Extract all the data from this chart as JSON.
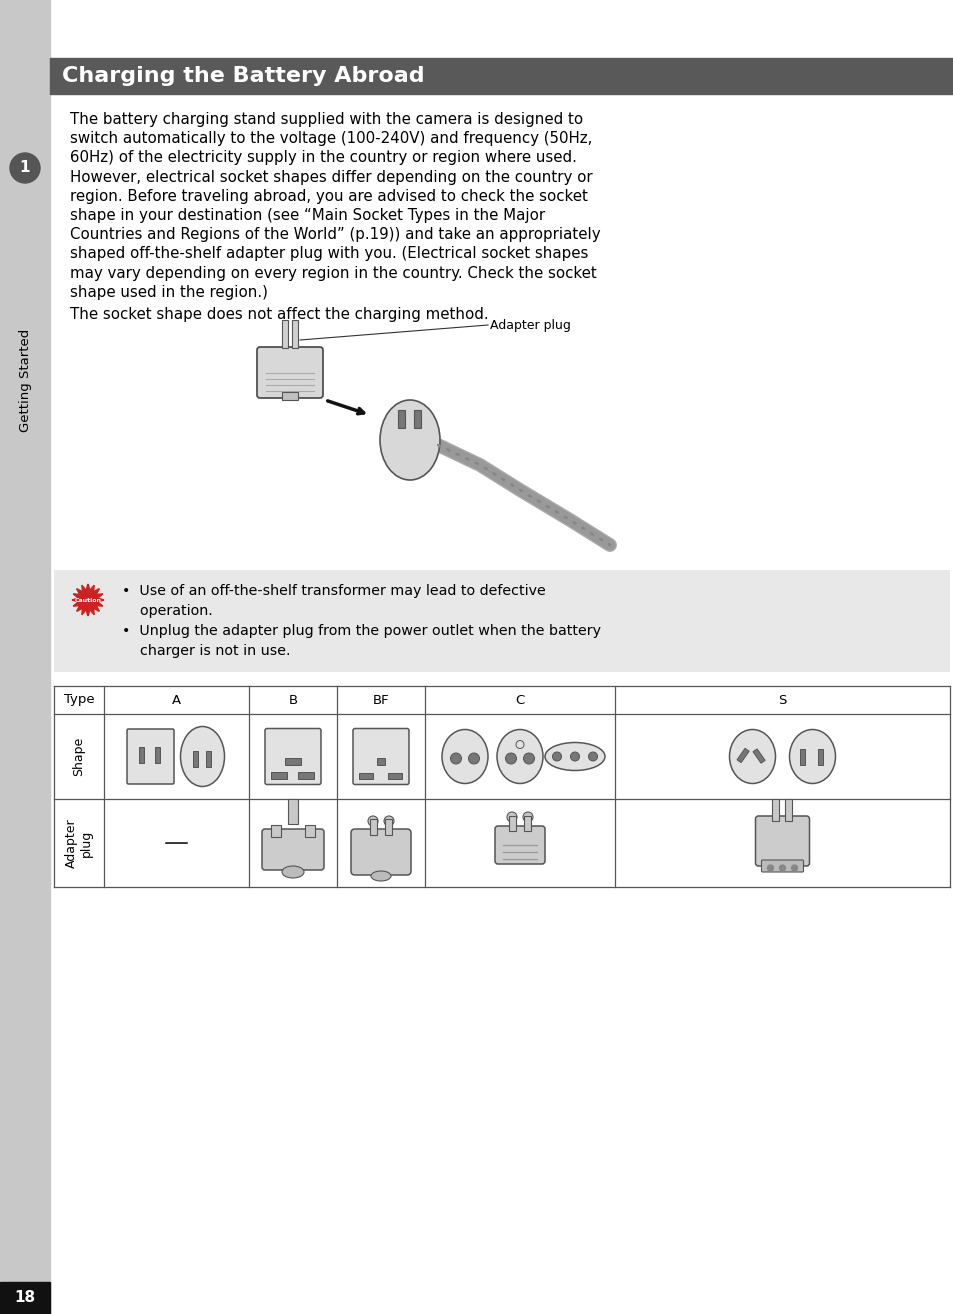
{
  "page_bg": "#ffffff",
  "sidebar_bg": "#c8c8c8",
  "header_bg": "#595959",
  "header_text": "Charging the Battery Abroad",
  "header_text_color": "#ffffff",
  "header_fontsize": 16,
  "body_fontsize": 10.8,
  "lines1": [
    "The battery charging stand supplied with the camera is designed to",
    "switch automatically to the voltage (100-240V) and frequency (50Hz,",
    "60Hz) of the electricity supply in the country or region where used.",
    "However, electrical socket shapes differ depending on the country or",
    "region. Before traveling abroad, you are advised to check the socket",
    "shape in your destination (see “Main Socket Types in the Major",
    "Countries and Regions of the World” (p.19)) and take an appropriately",
    "shaped off-the-shelf adapter plug with you. (Electrical socket shapes",
    "may vary depending on every region in the country. Check the socket",
    "shape used in the region.)"
  ],
  "line2": "The socket shape does not affect the charging method.",
  "adapter_label": "Adapter plug",
  "caution_bullet1a": "•  Use of an off-the-shelf transformer may lead to defective",
  "caution_bullet1b": "    operation.",
  "caution_bullet2a": "•  Unplug the adapter plug from the power outlet when the battery",
  "caution_bullet2b": "    charger is not in use.",
  "table_header": [
    "Type",
    "A",
    "B",
    "BF",
    "C",
    "S"
  ],
  "table_row1": "Shape",
  "table_row2": "Adapter\nplug",
  "page_number": "18",
  "sidebar_label": "Getting Started",
  "chapter_number": "1"
}
